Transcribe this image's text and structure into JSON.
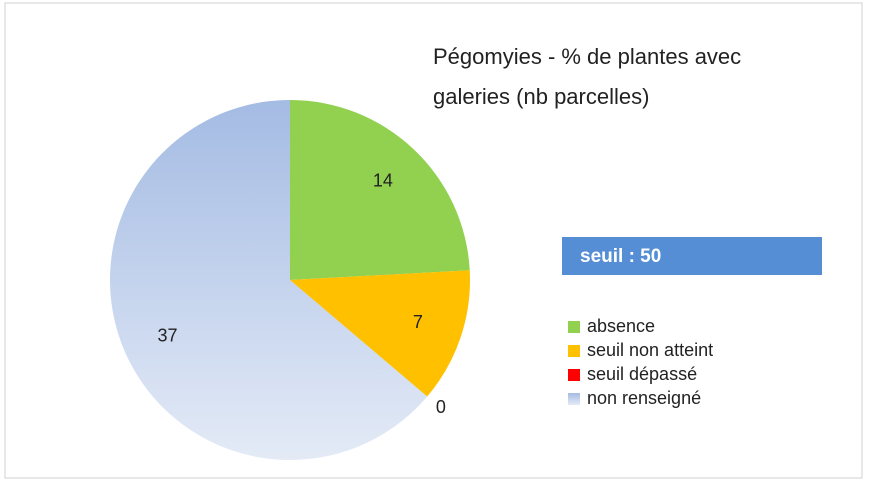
{
  "chart_data": {
    "type": "pie",
    "title": [
      "Pégomyies - % de plantes avec",
      "galeries (nb parcelles)"
    ],
    "annotation": "seuil : 50",
    "categories": [
      "absence",
      "seuil non atteint",
      "seuil dépassé",
      "non renseigné"
    ],
    "values": [
      14,
      7,
      0,
      37
    ],
    "colors": [
      "#92d050",
      "#ffc000",
      "#ff0000",
      "#a4bbe3"
    ],
    "legend": "right"
  }
}
